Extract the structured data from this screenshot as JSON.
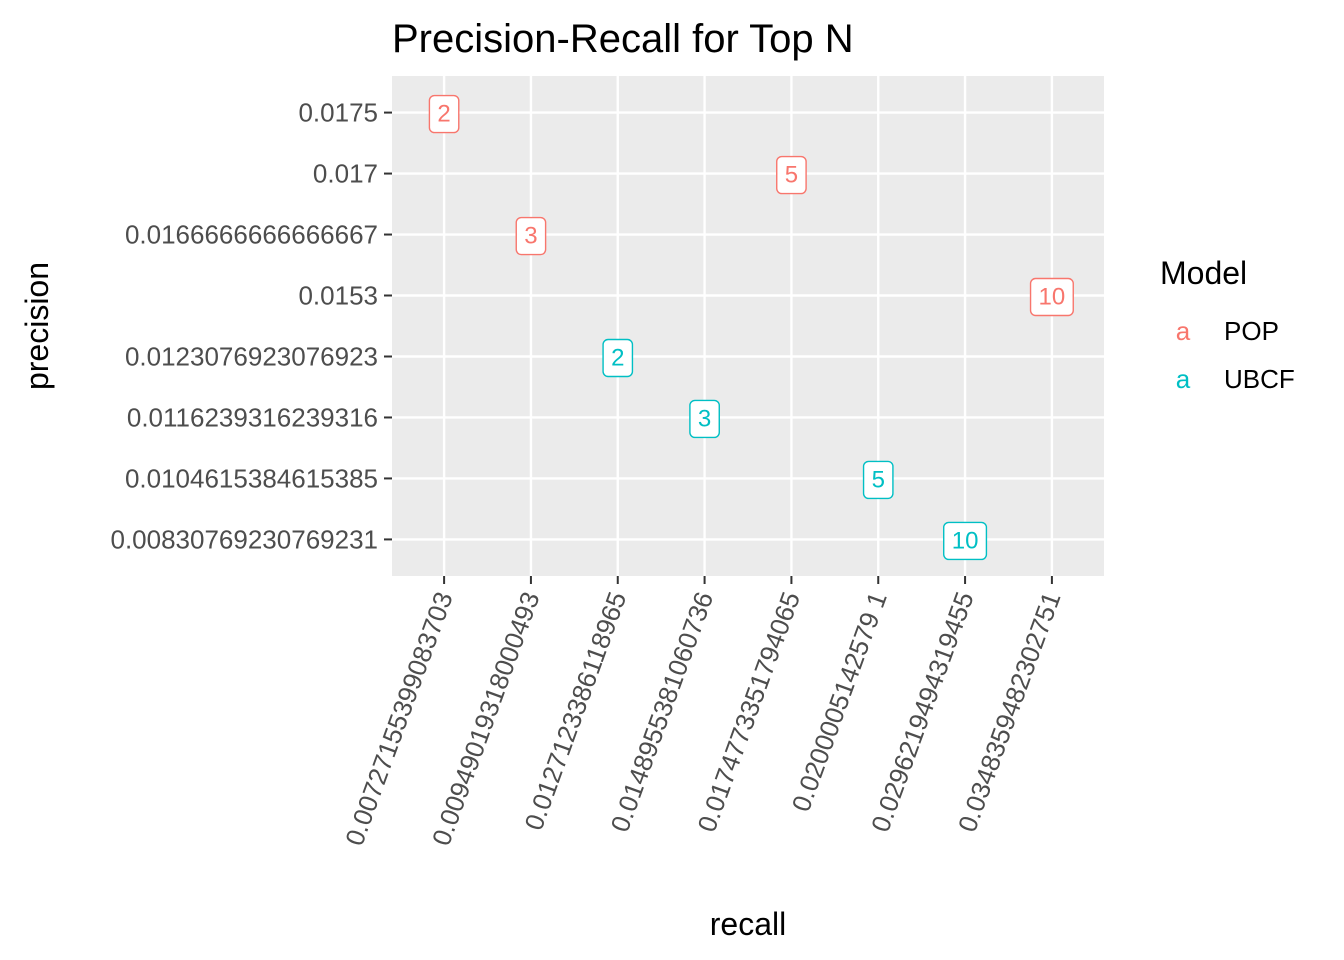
{
  "chart_data": {
    "type": "scatter",
    "title": "Precision-Recall for Top N",
    "xlabel": "recall",
    "ylabel": "precision",
    "x_categories": [
      "0.00727155399083703",
      "0.00949019318000493",
      "0.0127123386118965",
      "0.0148955381060736",
      "0.0174773351794065",
      "0.0200005142579 1",
      "0.0296219494319455",
      "0.0348359482302751"
    ],
    "y_categories": [
      "0.00830769230769231",
      "0.0104615384615385",
      "0.0116239316239316",
      "0.0123076923076923",
      "0.0153",
      "0.0166666666666667",
      "0.017",
      "0.0175"
    ],
    "legend": {
      "title": "Model",
      "key_glyph": "a",
      "placement": "right"
    },
    "series": [
      {
        "name": "POP",
        "color": "#f8766d",
        "points": [
          {
            "x": "0.00727155399083703",
            "y": "0.0175",
            "label": "2"
          },
          {
            "x": "0.00949019318000493",
            "y": "0.0166666666666667",
            "label": "3"
          },
          {
            "x": "0.0174773351794065",
            "y": "0.017",
            "label": "5"
          },
          {
            "x": "0.0348359482302751",
            "y": "0.0153",
            "label": "10"
          }
        ]
      },
      {
        "name": "UBCF",
        "color": "#00bfc4",
        "points": [
          {
            "x": "0.0127123386118965",
            "y": "0.0123076923076923",
            "label": "2"
          },
          {
            "x": "0.0148955381060736",
            "y": "0.0116239316239316",
            "label": "3"
          },
          {
            "x": "0.0200005142579 1",
            "y": "0.0104615384615385",
            "label": "5"
          },
          {
            "x": "0.0296219494319455",
            "y": "0.00830769230769231",
            "label": "10"
          }
        ]
      }
    ],
    "panel_background": "#ebebeb",
    "grid_color": "#ffffff",
    "grid": true
  }
}
